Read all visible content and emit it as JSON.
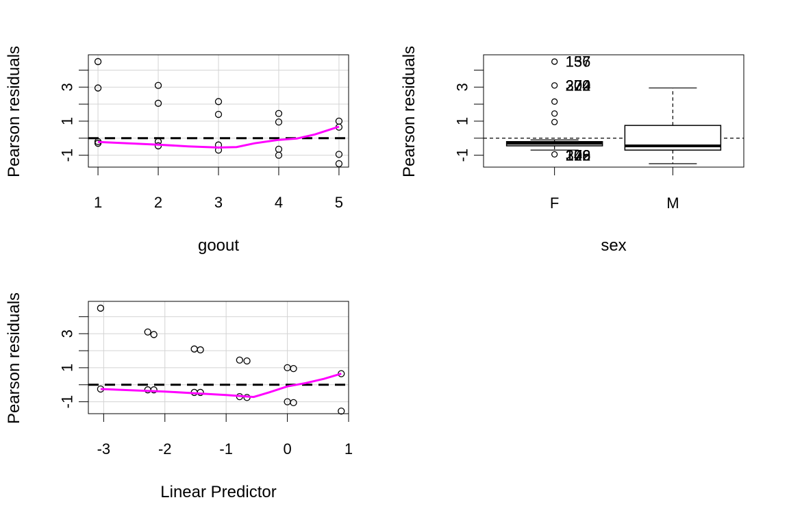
{
  "figure": {
    "panels": [
      {
        "type": "scatter",
        "xlabel": "goout",
        "ylabel": "Pearson residuals",
        "xlim": [
          0.84,
          5.16
        ],
        "ylim": [
          -1.7,
          4.9
        ],
        "xticks": [
          1,
          2,
          3,
          4,
          5
        ],
        "yticks": [
          -1,
          0,
          1,
          2,
          3,
          4
        ],
        "ytick_labels": [
          "-1",
          "",
          "1",
          "",
          "3",
          ""
        ],
        "grid": true,
        "points": [
          {
            "x": 1,
            "y": 4.5
          },
          {
            "x": 1,
            "y": 2.95
          },
          {
            "x": 1,
            "y": -0.2
          },
          {
            "x": 1,
            "y": -0.3
          },
          {
            "x": 2,
            "y": 3.1
          },
          {
            "x": 2,
            "y": 2.05
          },
          {
            "x": 2,
            "y": -0.2
          },
          {
            "x": 2,
            "y": -0.45
          },
          {
            "x": 3,
            "y": 2.15
          },
          {
            "x": 3,
            "y": 1.4
          },
          {
            "x": 3,
            "y": -0.4
          },
          {
            "x": 3,
            "y": -0.7
          },
          {
            "x": 4,
            "y": 1.45
          },
          {
            "x": 4,
            "y": 0.95
          },
          {
            "x": 4,
            "y": -0.65
          },
          {
            "x": 4,
            "y": -1.0
          },
          {
            "x": 5,
            "y": 1.0
          },
          {
            "x": 5,
            "y": 0.65
          },
          {
            "x": 5,
            "y": -0.95
          },
          {
            "x": 5,
            "y": -1.5
          }
        ],
        "reference_line_y": 0,
        "smooth": [
          {
            "x": 1,
            "y": -0.22
          },
          {
            "x": 1.5,
            "y": -0.3
          },
          {
            "x": 2,
            "y": -0.38
          },
          {
            "x": 2.5,
            "y": -0.48
          },
          {
            "x": 3,
            "y": -0.55
          },
          {
            "x": 3.3,
            "y": -0.52
          },
          {
            "x": 3.6,
            "y": -0.3
          },
          {
            "x": 4,
            "y": -0.1
          },
          {
            "x": 4.3,
            "y": -0.02
          },
          {
            "x": 4.6,
            "y": 0.22
          },
          {
            "x": 5,
            "y": 0.68
          }
        ],
        "smooth_color": "#ff00ff"
      },
      {
        "type": "box",
        "xlabel": "sex",
        "ylabel": "Pearson residuals",
        "xlim": [
          0.4,
          2.6
        ],
        "ylim": [
          -1.7,
          4.9
        ],
        "categories": [
          "F",
          "M"
        ],
        "yticks": [
          -1,
          0,
          1,
          2,
          3,
          4
        ],
        "ytick_labels": [
          "-1",
          "",
          "1",
          "",
          "3",
          ""
        ],
        "grid": false,
        "boxes": [
          {
            "category": "F",
            "whisker_low": -0.7,
            "q1": -0.45,
            "median": -0.3,
            "q3": -0.2,
            "whisker_high": -0.1,
            "outliers": [
              4.5,
              3.1,
              2.15,
              1.45,
              0.95,
              -0.95
            ]
          },
          {
            "category": "M",
            "whisker_low": -1.5,
            "q1": -0.7,
            "median": -0.45,
            "q3": 0.75,
            "whisker_high": 2.95,
            "outliers": []
          }
        ],
        "reference_line_y": 0,
        "annotations": [
          {
            "text": "157",
            "x": 1,
            "y": 4.5
          },
          {
            "text": "136",
            "x": 1,
            "y": 4.5
          },
          {
            "text": "200",
            "x": 1,
            "y": 3.1
          },
          {
            "text": "272",
            "x": 1,
            "y": 3.1
          },
          {
            "text": "224",
            "x": 1,
            "y": 3.1
          },
          {
            "text": "372",
            "x": 1,
            "y": 3.1
          },
          {
            "text": "308",
            "x": 1,
            "y": -1.0
          },
          {
            "text": "242",
            "x": 1,
            "y": -1.0
          },
          {
            "text": "176",
            "x": 1,
            "y": -1.0
          },
          {
            "text": "129",
            "x": 1,
            "y": -1.0
          }
        ]
      },
      {
        "type": "scatter",
        "xlabel": "Linear Predictor",
        "ylabel": "Pearson residuals",
        "xlim": [
          -3.25,
          1.0
        ],
        "ylim": [
          -1.7,
          4.9
        ],
        "xticks": [
          -3,
          -2,
          -1,
          0,
          1
        ],
        "yticks": [
          -1,
          0,
          1,
          2,
          3,
          4
        ],
        "ytick_labels": [
          "-1",
          "",
          "1",
          "",
          "3",
          ""
        ],
        "grid": true,
        "points": [
          {
            "x": -3.05,
            "y": 4.5
          },
          {
            "x": -3.05,
            "y": -0.25
          },
          {
            "x": -2.28,
            "y": 3.1
          },
          {
            "x": -2.18,
            "y": 2.95
          },
          {
            "x": -2.28,
            "y": -0.3
          },
          {
            "x": -2.18,
            "y": -0.3
          },
          {
            "x": -1.52,
            "y": 2.1
          },
          {
            "x": -1.42,
            "y": 2.05
          },
          {
            "x": -1.52,
            "y": -0.45
          },
          {
            "x": -1.42,
            "y": -0.45
          },
          {
            "x": -0.78,
            "y": 1.45
          },
          {
            "x": -0.66,
            "y": 1.4
          },
          {
            "x": -0.78,
            "y": -0.7
          },
          {
            "x": -0.66,
            "y": -0.75
          },
          {
            "x": 0.0,
            "y": 1.0
          },
          {
            "x": 0.1,
            "y": 0.95
          },
          {
            "x": 0.0,
            "y": -1.0
          },
          {
            "x": 0.1,
            "y": -1.05
          },
          {
            "x": 0.88,
            "y": 0.65
          },
          {
            "x": 0.88,
            "y": -1.55
          }
        ],
        "reference_line_y": 0,
        "smooth": [
          {
            "x": -3.05,
            "y": -0.25
          },
          {
            "x": -2.5,
            "y": -0.33
          },
          {
            "x": -2.0,
            "y": -0.4
          },
          {
            "x": -1.5,
            "y": -0.5
          },
          {
            "x": -1.0,
            "y": -0.6
          },
          {
            "x": -0.55,
            "y": -0.72
          },
          {
            "x": -0.3,
            "y": -0.45
          },
          {
            "x": 0.0,
            "y": -0.1
          },
          {
            "x": 0.3,
            "y": 0.1
          },
          {
            "x": 0.6,
            "y": 0.35
          },
          {
            "x": 0.88,
            "y": 0.65
          }
        ],
        "smooth_color": "#ff00ff"
      }
    ]
  }
}
